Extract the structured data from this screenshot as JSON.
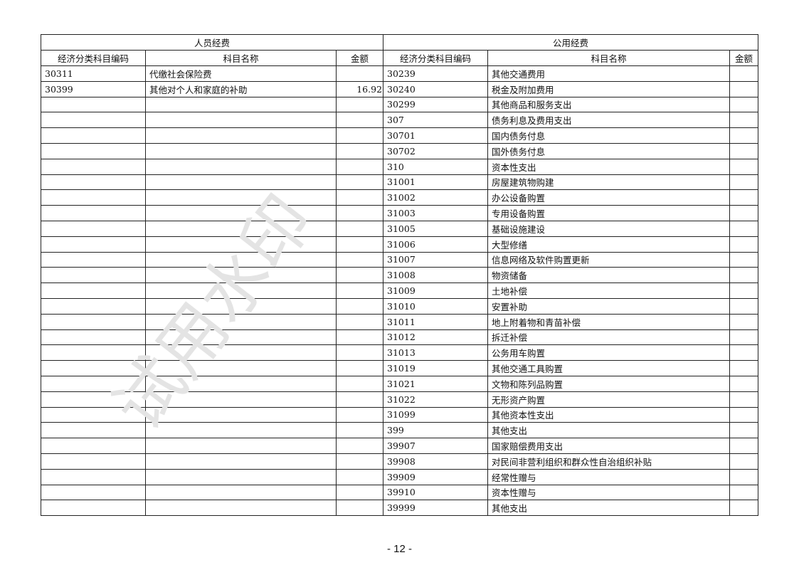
{
  "headers": {
    "personnel": "人员经费",
    "public": "公用经费",
    "code": "经济分类科目编码",
    "name": "科目名称",
    "amount": "金额"
  },
  "personnel_rows": [
    {
      "code": "30311",
      "name": "代缴社会保险费",
      "amount": ""
    },
    {
      "code": "30399",
      "name": "其他对个人和家庭的补助",
      "amount": "16.92"
    }
  ],
  "public_rows": [
    {
      "code": "30239",
      "name": "其他交通费用",
      "amount": ""
    },
    {
      "code": "30240",
      "name": "税金及附加费用",
      "amount": ""
    },
    {
      "code": "30299",
      "name": "其他商品和服务支出",
      "amount": ""
    },
    {
      "code": "307",
      "name": "债务利息及费用支出",
      "amount": ""
    },
    {
      "code": "30701",
      "name": "国内债务付息",
      "amount": ""
    },
    {
      "code": "30702",
      "name": "国外债务付息",
      "amount": ""
    },
    {
      "code": "310",
      "name": "资本性支出",
      "amount": ""
    },
    {
      "code": "31001",
      "name": "房屋建筑物购建",
      "amount": ""
    },
    {
      "code": "31002",
      "name": "办公设备购置",
      "amount": ""
    },
    {
      "code": "31003",
      "name": "专用设备购置",
      "amount": ""
    },
    {
      "code": "31005",
      "name": "基础设施建设",
      "amount": ""
    },
    {
      "code": "31006",
      "name": "大型修缮",
      "amount": ""
    },
    {
      "code": "31007",
      "name": "信息网络及软件购置更新",
      "amount": ""
    },
    {
      "code": "31008",
      "name": "物资储备",
      "amount": ""
    },
    {
      "code": "31009",
      "name": "土地补偿",
      "amount": ""
    },
    {
      "code": "31010",
      "name": "安置补助",
      "amount": ""
    },
    {
      "code": "31011",
      "name": "地上附着物和青苗补偿",
      "amount": ""
    },
    {
      "code": "31012",
      "name": "拆迁补偿",
      "amount": ""
    },
    {
      "code": "31013",
      "name": "公务用车购置",
      "amount": ""
    },
    {
      "code": "31019",
      "name": "其他交通工具购置",
      "amount": ""
    },
    {
      "code": "31021",
      "name": "文物和陈列品购置",
      "amount": ""
    },
    {
      "code": "31022",
      "name": "无形资产购置",
      "amount": ""
    },
    {
      "code": "31099",
      "name": "其他资本性支出",
      "amount": ""
    },
    {
      "code": "399",
      "name": "其他支出",
      "amount": ""
    },
    {
      "code": "39907",
      "name": "国家赔偿费用支出",
      "amount": ""
    },
    {
      "code": "39908",
      "name": "对民间非营利组织和群众性自治组织补贴",
      "amount": ""
    },
    {
      "code": "39909",
      "name": "经常性赠与",
      "amount": ""
    },
    {
      "code": "39910",
      "name": "资本性赠与",
      "amount": ""
    },
    {
      "code": "39999",
      "name": "其他支出",
      "amount": ""
    }
  ],
  "watermark": "试用水印",
  "page_number": "- 12 -"
}
